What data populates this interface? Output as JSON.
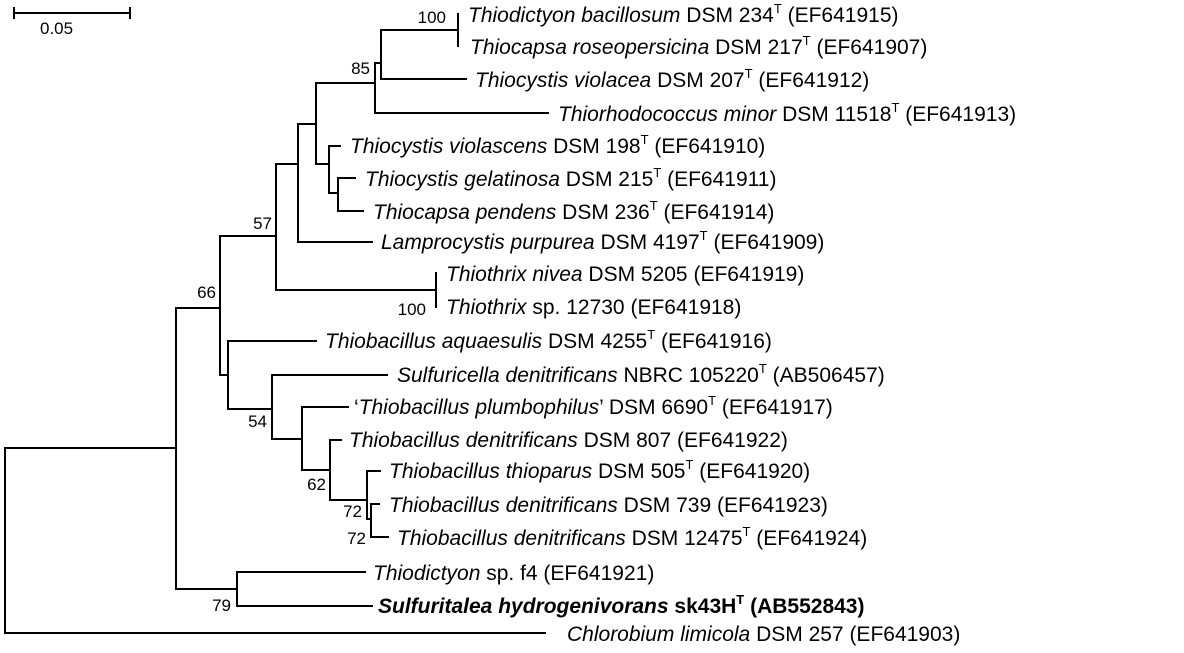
{
  "scale_bar": {
    "label": "0.05"
  },
  "taxa": [
    {
      "id": "t1",
      "genus": "Thiodictyon bacillosum",
      "strain": "DSM 234",
      "type_strain": true,
      "accession": "(EF641915)"
    },
    {
      "id": "t2",
      "genus": "Thiocapsa roseopersicina",
      "strain": "DSM 217",
      "type_strain": true,
      "accession": "(EF641907)"
    },
    {
      "id": "t3",
      "genus": "Thiocystis violacea",
      "strain": "DSM 207",
      "type_strain": true,
      "accession": "(EF641912)"
    },
    {
      "id": "t4",
      "genus": "Thiorhodococcus minor",
      "strain": "DSM 11518",
      "type_strain": true,
      "accession": "(EF641913)"
    },
    {
      "id": "t5",
      "genus": "Thiocystis violascens",
      "strain": "DSM 198",
      "type_strain": true,
      "accession": "(EF641910)"
    },
    {
      "id": "t6",
      "genus": "Thiocystis gelatinosa",
      "strain": "DSM 215",
      "type_strain": true,
      "accession": "(EF641911)"
    },
    {
      "id": "t7",
      "genus": "Thiocapsa pendens",
      "strain": "DSM 236",
      "type_strain": true,
      "accession": "(EF641914)"
    },
    {
      "id": "t8",
      "genus": "Lamprocystis purpurea",
      "strain": "DSM 4197",
      "type_strain": true,
      "accession": "(EF641909)"
    },
    {
      "id": "t9",
      "genus": "Thiothrix nivea",
      "strain": "DSM 5205",
      "type_strain": false,
      "accession": "(EF641919)"
    },
    {
      "id": "t10",
      "genus": "Thiothrix",
      "strain": "sp. 12730",
      "type_strain": false,
      "accession": "(EF641918)"
    },
    {
      "id": "t11",
      "genus": "Thiobacillus aquaesulis",
      "strain": "DSM 4255",
      "type_strain": true,
      "accession": "(EF641916)"
    },
    {
      "id": "t12",
      "genus": "Sulfuricella denitrificans",
      "strain": "NBRC 105220",
      "type_strain": true,
      "accession": "(AB506457)"
    },
    {
      "id": "t13",
      "prefix": "‘",
      "genus": "Thiobacillus plumbophilus",
      "suffix": "’",
      "strain": "DSM 6690",
      "type_strain": true,
      "accession": "(EF641917)"
    },
    {
      "id": "t14",
      "genus": "Thiobacillus denitrificans",
      "strain": "DSM 807",
      "type_strain": false,
      "accession": "(EF641922)"
    },
    {
      "id": "t15",
      "genus": "Thiobacillus thioparus",
      "strain": "DSM 505",
      "type_strain": true,
      "accession": "(EF641920)"
    },
    {
      "id": "t16",
      "genus": "Thiobacillus denitrificans",
      "strain": "DSM 739",
      "type_strain": false,
      "accession": "(EF641923)"
    },
    {
      "id": "t17",
      "genus": "Thiobacillus denitrificans",
      "strain": "DSM 12475",
      "type_strain": true,
      "accession": "(EF641924)"
    },
    {
      "id": "t18",
      "genus": "Thiodictyon",
      "strain": "sp. f4",
      "type_strain": false,
      "accession": "(EF641921)"
    },
    {
      "id": "t19",
      "genus": "Sulfuritalea hydrogenivorans",
      "strain": "sk43H",
      "type_strain": true,
      "accession": "(AB552843)",
      "bold": true
    },
    {
      "id": "t20",
      "genus": "Chlorobium limicola",
      "strain": "DSM 257",
      "type_strain": false,
      "accession": "(EF641903)"
    }
  ],
  "bootstrap": [
    {
      "id": "b1",
      "value": "100"
    },
    {
      "id": "b2",
      "value": "85"
    },
    {
      "id": "b3",
      "value": "57"
    },
    {
      "id": "b4",
      "value": "66"
    },
    {
      "id": "b5",
      "value": "100"
    },
    {
      "id": "b6",
      "value": "54"
    },
    {
      "id": "b7",
      "value": "62"
    },
    {
      "id": "b8",
      "value": "72"
    },
    {
      "id": "b9",
      "value": "72"
    },
    {
      "id": "b10",
      "value": "79"
    }
  ],
  "type_strain_marker": "T"
}
